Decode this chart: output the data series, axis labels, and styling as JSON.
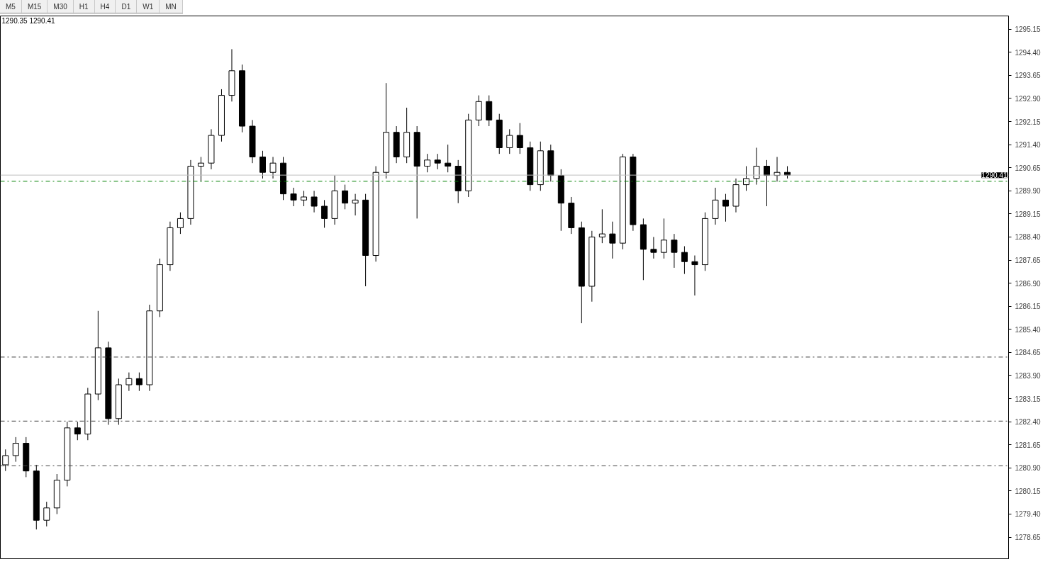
{
  "chart_data": {
    "type": "candlestick",
    "title": "1290.35 1290.41",
    "annotations": [
      "M5",
      "M15",
      "M30",
      "H1",
      "H4",
      "D1",
      "W1",
      "MN"
    ],
    "categories": [
      null,
      null,
      null,
      null,
      null,
      null,
      null,
      null,
      null,
      null,
      null,
      null,
      null,
      null,
      null,
      null,
      null,
      null,
      null,
      null,
      null,
      null,
      null,
      null,
      null,
      null,
      null,
      null,
      null,
      null,
      null,
      null,
      null,
      null,
      null,
      null,
      null,
      null,
      null,
      null,
      null,
      null,
      null,
      null,
      null,
      null,
      null,
      null,
      null,
      null,
      null,
      null,
      null,
      null,
      null,
      null,
      null,
      null,
      null,
      null,
      null,
      null,
      null,
      null,
      null,
      null,
      null,
      null,
      null,
      null,
      null,
      null,
      null,
      null,
      null,
      null,
      null,
      null,
      null,
      null,
      null,
      null,
      null,
      null,
      null,
      null,
      null,
      null,
      null,
      null,
      null,
      null,
      null,
      null,
      null,
      null,
      null,
      null
    ],
    "ohlc": [
      [
        1281.0,
        1281.5,
        1280.8,
        1281.3
      ],
      [
        1281.3,
        1281.9,
        1281.1,
        1281.7
      ],
      [
        1281.7,
        1281.9,
        1280.6,
        1280.8
      ],
      [
        1280.8,
        1281.0,
        1278.9,
        1279.2
      ],
      [
        1279.2,
        1279.8,
        1279.0,
        1279.6
      ],
      [
        1279.6,
        1280.7,
        1279.4,
        1280.5
      ],
      [
        1280.5,
        1282.4,
        1280.3,
        1282.2
      ],
      [
        1282.2,
        1282.4,
        1281.8,
        1282.0
      ],
      [
        1282.0,
        1283.5,
        1281.8,
        1283.3
      ],
      [
        1283.3,
        1286.0,
        1283.1,
        1284.8
      ],
      [
        1284.8,
        1285.0,
        1282.3,
        1282.5
      ],
      [
        1282.5,
        1283.8,
        1282.3,
        1283.6
      ],
      [
        1283.6,
        1284.0,
        1283.4,
        1283.8
      ],
      [
        1283.8,
        1284.0,
        1283.4,
        1283.6
      ],
      [
        1283.6,
        1286.2,
        1283.4,
        1286.0
      ],
      [
        1286.0,
        1287.7,
        1285.8,
        1287.5
      ],
      [
        1287.5,
        1288.9,
        1287.3,
        1288.7
      ],
      [
        1288.7,
        1289.2,
        1288.5,
        1289.0
      ],
      [
        1289.0,
        1290.9,
        1288.8,
        1290.7
      ],
      [
        1290.7,
        1291.0,
        1290.2,
        1290.8
      ],
      [
        1290.8,
        1291.9,
        1290.6,
        1291.7
      ],
      [
        1291.7,
        1293.2,
        1291.5,
        1293.0
      ],
      [
        1293.0,
        1294.5,
        1292.8,
        1293.8
      ],
      [
        1293.8,
        1294.0,
        1291.8,
        1292.0
      ],
      [
        1292.0,
        1292.2,
        1290.8,
        1291.0
      ],
      [
        1291.0,
        1291.2,
        1290.3,
        1290.5
      ],
      [
        1290.5,
        1291.0,
        1290.3,
        1290.8
      ],
      [
        1290.8,
        1291.0,
        1289.6,
        1289.8
      ],
      [
        1289.8,
        1290.0,
        1289.4,
        1289.6
      ],
      [
        1289.6,
        1289.9,
        1289.4,
        1289.7
      ],
      [
        1289.7,
        1289.9,
        1289.2,
        1289.4
      ],
      [
        1289.4,
        1289.6,
        1288.7,
        1289.0
      ],
      [
        1289.0,
        1290.4,
        1288.8,
        1289.9
      ],
      [
        1289.9,
        1290.1,
        1289.3,
        1289.5
      ],
      [
        1289.5,
        1289.8,
        1289.1,
        1289.6
      ],
      [
        1289.6,
        1289.8,
        1286.8,
        1287.8
      ],
      [
        1287.8,
        1290.7,
        1287.6,
        1290.5
      ],
      [
        1290.5,
        1293.4,
        1290.3,
        1291.8
      ],
      [
        1291.8,
        1292.0,
        1290.8,
        1291.0
      ],
      [
        1291.0,
        1292.6,
        1290.8,
        1291.8
      ],
      [
        1291.8,
        1292.0,
        1289.0,
        1290.7
      ],
      [
        1290.7,
        1291.1,
        1290.5,
        1290.9
      ],
      [
        1290.9,
        1291.1,
        1290.6,
        1290.8
      ],
      [
        1290.8,
        1291.4,
        1290.5,
        1290.7
      ],
      [
        1290.7,
        1290.9,
        1289.5,
        1289.9
      ],
      [
        1289.9,
        1292.4,
        1289.7,
        1292.2
      ],
      [
        1292.2,
        1293.0,
        1292.0,
        1292.8
      ],
      [
        1292.8,
        1293.0,
        1292.0,
        1292.2
      ],
      [
        1292.2,
        1292.4,
        1291.1,
        1291.3
      ],
      [
        1291.3,
        1291.9,
        1291.1,
        1291.7
      ],
      [
        1291.7,
        1292.1,
        1291.1,
        1291.3
      ],
      [
        1291.3,
        1291.5,
        1289.9,
        1290.1
      ],
      [
        1290.1,
        1291.5,
        1289.9,
        1291.2
      ],
      [
        1291.2,
        1291.4,
        1290.2,
        1290.4
      ],
      [
        1290.4,
        1290.6,
        1288.6,
        1289.5
      ],
      [
        1289.5,
        1289.7,
        1288.5,
        1288.7
      ],
      [
        1288.7,
        1288.9,
        1285.6,
        1286.8
      ],
      [
        1286.8,
        1288.6,
        1286.3,
        1288.4
      ],
      [
        1288.4,
        1289.3,
        1288.2,
        1288.5
      ],
      [
        1288.5,
        1288.9,
        1287.7,
        1288.2
      ],
      [
        1288.2,
        1291.1,
        1288.0,
        1291.0
      ],
      [
        1291.0,
        1291.1,
        1288.6,
        1288.8
      ],
      [
        1288.8,
        1289.0,
        1287.0,
        1288.0
      ],
      [
        1288.0,
        1288.4,
        1287.7,
        1287.9
      ],
      [
        1287.9,
        1289.0,
        1287.7,
        1288.3
      ],
      [
        1288.3,
        1288.5,
        1287.4,
        1287.9
      ],
      [
        1287.9,
        1288.1,
        1287.2,
        1287.6
      ],
      [
        1287.6,
        1287.8,
        1286.5,
        1287.5
      ],
      [
        1287.5,
        1289.2,
        1287.3,
        1289.0
      ],
      [
        1289.0,
        1290.0,
        1288.8,
        1289.6
      ],
      [
        1289.6,
        1289.8,
        1288.9,
        1289.4
      ],
      [
        1289.4,
        1290.3,
        1289.2,
        1290.1
      ],
      [
        1290.1,
        1290.7,
        1289.9,
        1290.3
      ],
      [
        1290.3,
        1291.3,
        1290.1,
        1290.7
      ],
      [
        1290.7,
        1290.9,
        1289.4,
        1290.4
      ],
      [
        1290.4,
        1291.0,
        1290.2,
        1290.5
      ],
      [
        1290.5,
        1290.7,
        1290.3,
        1290.41
      ],
      null,
      null,
      null,
      null,
      null,
      null,
      null,
      null,
      null,
      null,
      null,
      null,
      null,
      null,
      null,
      null,
      null,
      null,
      null,
      null,
      null
    ],
    "ylim": [
      1277.95,
      1295.58
    ],
    "yticks": [
      1278.65,
      {
        "value": 1279.4,
        "label": "1279.40"
      },
      1280.15,
      {
        "value": 1280.9,
        "label": "1280.90"
      },
      1281.65,
      {
        "value": 1282.4,
        "label": "1282.40"
      },
      1283.15,
      {
        "value": 1283.9,
        "label": "1283.90"
      },
      1284.65,
      {
        "value": 1285.4,
        "label": "1285.40"
      },
      1286.15,
      {
        "value": 1286.9,
        "label": "1286.90"
      },
      1287.65,
      {
        "value": 1288.4,
        "label": "1288.40"
      },
      1289.15,
      {
        "value": 1289.9,
        "label": "1289.90"
      },
      1290.65,
      {
        "value": 1291.4,
        "label": "1291.40"
      },
      1292.15,
      {
        "value": 1292.9,
        "label": "1292.90"
      },
      1293.65,
      {
        "value": 1294.4,
        "label": "1294.40"
      },
      1295.15
    ],
    "tick_labels": "y",
    "grid": false,
    "ref_lines": [
      {
        "axis": "y",
        "value": 1290.41,
        "label": "1290.41",
        "color": "#c0c0c0",
        "line_style": "solid"
      },
      {
        "axis": "y",
        "value": 1290.21,
        "color": "#008000",
        "line_style": "dashdot"
      },
      {
        "axis": "y",
        "value": 1284.5,
        "color": "#404040",
        "line_style": "dashdot"
      },
      {
        "axis": "y",
        "value": 1282.42,
        "color": "#404040",
        "line_style": "dashdot"
      },
      {
        "axis": "y",
        "value": 1280.97,
        "color": "#404040",
        "line_style": "dashdot"
      }
    ]
  }
}
